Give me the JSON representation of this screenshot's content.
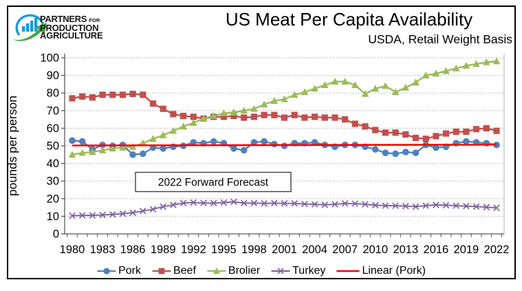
{
  "header": {
    "logo": {
      "line1_bold": "PARTNERS",
      "line1_small": "FOR",
      "line2": "PRODUCTION",
      "line3": "AGRICULTURE",
      "icon_blue": "#1B9AD7",
      "icon_green": "#44A648"
    },
    "title": "US Meat Per Capita Availability",
    "subtitle": "USDA, Retail Weight Basis"
  },
  "chart_data": {
    "type": "line",
    "title": "US Meat Per Capita Availability",
    "subtitle": "USDA, Retail Weight Basis",
    "xlabel": "",
    "ylabel": "pounds per person",
    "ylim": [
      0,
      100
    ],
    "ytick_step": 10,
    "grid": "horizontal-dotted",
    "legend_position": "bottom",
    "annotation": "2022 Forward Forecast",
    "x": [
      1980,
      1981,
      1982,
      1983,
      1984,
      1985,
      1986,
      1987,
      1988,
      1989,
      1990,
      1991,
      1992,
      1993,
      1994,
      1995,
      1996,
      1997,
      1998,
      1999,
      2000,
      2001,
      2002,
      2003,
      2004,
      2005,
      2006,
      2007,
      2008,
      2009,
      2010,
      2011,
      2012,
      2013,
      2014,
      2015,
      2016,
      2017,
      2018,
      2019,
      2020,
      2021,
      2022
    ],
    "xtick_labels": [
      "1980",
      "1983",
      "1986",
      "1989",
      "1992",
      "1995",
      "1998",
      "2001",
      "2004",
      "2007",
      "2010",
      "2013",
      "2016",
      "2019",
      "2022"
    ],
    "series": [
      {
        "name": "Pork",
        "marker": "circle",
        "color": "#4F81BD",
        "values": [
          53,
          52.5,
          48,
          50.5,
          50,
          50.5,
          45,
          45.5,
          49,
          48.5,
          49.5,
          50,
          52,
          51.5,
          52.5,
          51.5,
          48.5,
          47.5,
          52,
          52.5,
          51,
          50,
          51.5,
          51.5,
          52,
          50.5,
          49.5,
          50.5,
          50.5,
          49.5,
          48,
          46,
          45.5,
          46.5,
          46,
          50.5,
          49,
          49.5,
          51.5,
          52.5,
          52,
          51.5,
          50.5
        ]
      },
      {
        "name": "Beef",
        "marker": "square",
        "color": "#C0504D",
        "values": [
          77,
          78,
          77.5,
          79,
          79,
          79,
          79.5,
          79,
          74,
          71,
          68,
          67,
          66.5,
          65.5,
          66.5,
          66.5,
          67,
          66,
          66.5,
          67.5,
          67.5,
          66,
          67.5,
          66,
          66.5,
          66,
          66,
          65,
          62.5,
          61,
          59,
          57.5,
          57.5,
          56.5,
          54.5,
          54,
          55.5,
          57,
          58,
          58,
          59.5,
          60,
          58.5
        ]
      },
      {
        "name": "Brolier",
        "marker": "triangle",
        "color": "#9BBB59",
        "values": [
          45,
          46,
          46.5,
          47.5,
          48.5,
          49,
          49.5,
          51.5,
          54,
          56,
          58.5,
          61,
          63,
          65.5,
          67,
          68.5,
          69,
          70,
          71,
          73.5,
          75.5,
          76.5,
          79,
          80.5,
          82.5,
          84.5,
          86.5,
          86.5,
          84.5,
          79.5,
          82.5,
          84,
          80.5,
          83,
          86,
          90,
          91,
          92.5,
          94,
          95.5,
          96.5,
          97.5,
          98
        ]
      },
      {
        "name": "Turkey",
        "marker": "x",
        "color": "#8064A2",
        "values": [
          10.3,
          10.5,
          10.5,
          10.8,
          11,
          11.5,
          12,
          13,
          14,
          15.5,
          16.5,
          17.5,
          17.8,
          17.5,
          17.5,
          17.8,
          18.2,
          17.5,
          17.5,
          17.3,
          17.5,
          17.3,
          17.3,
          17,
          16.8,
          16.5,
          16.8,
          17.3,
          17.2,
          16.8,
          16.3,
          16,
          16,
          15.8,
          15.5,
          16,
          16.5,
          16.3,
          16,
          15.8,
          15.5,
          15.2,
          14.8
        ]
      },
      {
        "name": "Linear (Pork)",
        "marker": "none",
        "color": "#FF0000",
        "trend": {
          "start_value": 50.2,
          "end_value": 50.7
        }
      }
    ]
  },
  "legend": {
    "items": [
      {
        "label": "Pork"
      },
      {
        "label": "Beef"
      },
      {
        "label": "Brolier"
      },
      {
        "label": "Turkey"
      },
      {
        "label": "Linear (Pork)"
      }
    ]
  }
}
